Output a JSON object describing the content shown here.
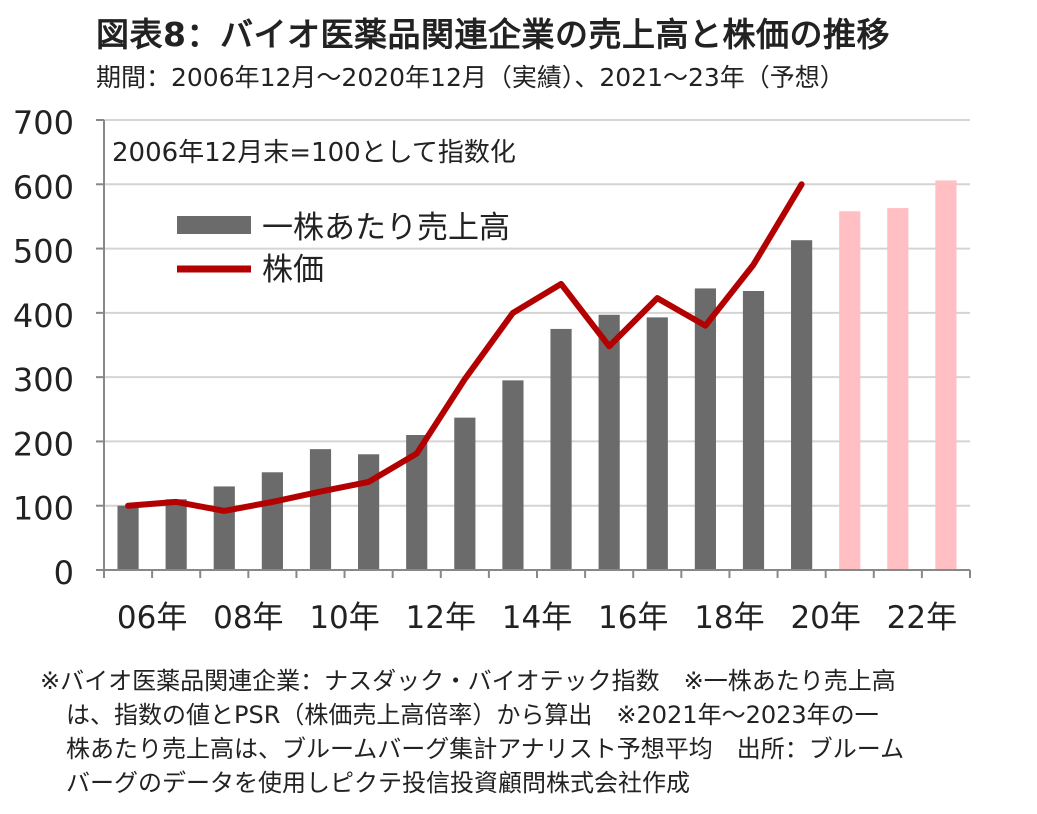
{
  "title": "図表8：バイオ医薬品関連企業の売上高と株価の推移",
  "subtitle": "期間：2006年12月～2020年12月（実績）、2021～23年（予想）",
  "chart_data": {
    "type": "bar",
    "annotation": "2006年12月末=100として指数化",
    "x_tick_labels": [
      "06年",
      "08年",
      "10年",
      "12年",
      "14年",
      "16年",
      "18年",
      "20年",
      "22年"
    ],
    "years": [
      2006,
      2007,
      2008,
      2009,
      2010,
      2011,
      2012,
      2013,
      2014,
      2015,
      2016,
      2017,
      2018,
      2019,
      2020,
      2021,
      2022,
      2023
    ],
    "ylim": [
      0,
      700
    ],
    "yticks": [
      0,
      100,
      200,
      300,
      400,
      500,
      600,
      700
    ],
    "grid": true,
    "legend_position": "top-left",
    "series": [
      {
        "name": "一株あたり売上高",
        "type": "bar",
        "color": "#6b6b6b",
        "forecast_color": "#ffbfc3",
        "forecast_from": 2021,
        "values": [
          100,
          110,
          130,
          152,
          188,
          180,
          210,
          237,
          295,
          375,
          397,
          393,
          438,
          434,
          513,
          558,
          563,
          606
        ]
      },
      {
        "name": "株価",
        "type": "line",
        "color": "#b30000",
        "values": [
          100,
          106,
          92,
          106,
          122,
          137,
          181,
          297,
          400,
          445,
          348,
          423,
          380,
          475,
          600
        ]
      }
    ]
  },
  "notes": [
    "※バイオ医薬品関連企業：ナスダック・バイオテック指数　※一株あたり売上高",
    "は、指数の値とPSR（株価売上高倍率）から算出　※2021年～2023年の一",
    "株あたり売上高は、ブルームバーグ集計アナリスト予想平均　出所：ブルーム",
    "バーグのデータを使用しピクテ投信投資顧問株式会社作成"
  ]
}
